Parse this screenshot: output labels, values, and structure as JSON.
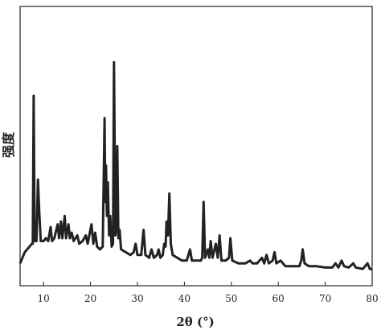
{
  "chart_data": {
    "type": "line",
    "y_label": "强度",
    "x_label": "2θ (°)",
    "xlim": [
      5,
      80
    ],
    "xticks": [
      10,
      20,
      30,
      40,
      50,
      60,
      70,
      80
    ],
    "ylim": [
      0,
      100
    ],
    "color": "#222222",
    "x": [
      5,
      5.5,
      6,
      6.5,
      7,
      7.5,
      7.7,
      7.9,
      8.1,
      8.5,
      8.8,
      9.1,
      9.4,
      10,
      10.5,
      11,
      11.5,
      11.8,
      12.3,
      13,
      13.3,
      13.7,
      14,
      14.5,
      14.8,
      15.3,
      15.6,
      16,
      16.4,
      17.2,
      17.6,
      18.3,
      19,
      19.4,
      20.2,
      20.6,
      21,
      21.4,
      22,
      22.6,
      23,
      23.15,
      23.3,
      23.5,
      23.7,
      23.95,
      24.2,
      24.5,
      24.8,
      25,
      25.3,
      25.5,
      25.7,
      25.95,
      26.2,
      26.5,
      27.5,
      28.5,
      29.2,
      29.6,
      30,
      30.8,
      31.3,
      31.7,
      32.5,
      33,
      33.5,
      34.2,
      34.5,
      34.9,
      35.4,
      35.7,
      36,
      36.2,
      36.5,
      36.8,
      37.1,
      37.5,
      38.5,
      39.5,
      40.5,
      41.2,
      41.6,
      42.5,
      43.5,
      43.8,
      44.1,
      44.4,
      45,
      45.3,
      45.6,
      46,
      46.7,
      47.1,
      47.5,
      47.9,
      48.8,
      49.5,
      49.8,
      50.2,
      51.5,
      53,
      54,
      54.5,
      55.5,
      56.5,
      57,
      57.5,
      58,
      58.8,
      59.2,
      59.6,
      60.5,
      61.5,
      63,
      64.5,
      64.9,
      65.2,
      65.6,
      66.5,
      68,
      70,
      71.5,
      72.2,
      72.8,
      73.5,
      74,
      75,
      76,
      76.5,
      78,
      79,
      79.5,
      80
    ],
    "values": [
      8,
      10,
      12,
      13,
      14,
      15,
      15,
      68,
      16,
      16,
      38,
      26,
      16,
      16,
      17,
      16,
      21,
      16,
      17,
      22,
      17,
      23,
      17,
      25,
      17,
      22,
      17,
      19,
      16,
      18,
      15,
      16,
      18,
      15,
      22,
      15,
      19,
      14,
      13,
      14,
      60,
      30,
      43,
      25,
      37,
      18,
      25,
      14,
      15,
      80,
      18,
      20,
      50,
      17,
      20,
      13,
      12,
      11,
      12,
      15,
      11,
      11,
      20,
      11,
      10,
      13,
      10,
      11,
      13,
      10,
      11,
      15,
      14,
      23,
      18,
      33,
      15,
      11,
      10,
      9,
      9,
      13,
      9,
      9,
      9,
      10,
      30,
      10,
      13,
      10,
      16,
      10,
      15,
      10,
      18,
      9,
      9,
      10,
      17,
      9,
      8,
      8,
      9,
      8,
      8,
      10,
      8,
      11,
      8,
      9,
      12,
      8,
      9,
      7,
      7,
      7,
      9,
      13,
      8,
      7,
      7,
      6.5,
      6.5,
      8,
      6.5,
      9,
      7,
      6.5,
      8,
      6.5,
      6,
      8,
      6,
      6
    ]
  }
}
